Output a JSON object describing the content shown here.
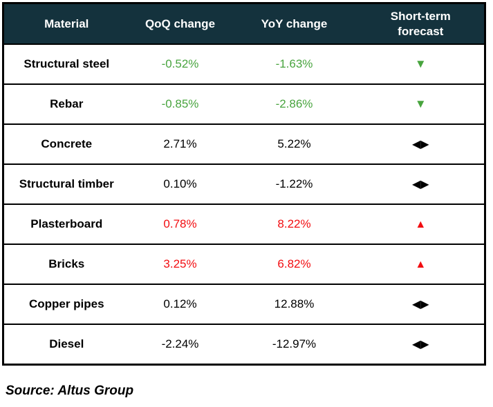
{
  "chart_data": {
    "type": "table",
    "columns": [
      "Material",
      "QoQ change",
      "YoY change",
      "Short-term forecast"
    ],
    "rows": [
      {
        "material": "Structural steel",
        "qoq": "-0.52%",
        "yoy": "-1.63%",
        "forecast": "down"
      },
      {
        "material": "Rebar",
        "qoq": "-0.85%",
        "yoy": "-2.86%",
        "forecast": "down"
      },
      {
        "material": "Concrete",
        "qoq": "2.71%",
        "yoy": "5.22%",
        "forecast": "neutral"
      },
      {
        "material": "Structural timber",
        "qoq": "0.10%",
        "yoy": "-1.22%",
        "forecast": "neutral"
      },
      {
        "material": "Plasterboard",
        "qoq": "0.78%",
        "yoy": "8.22%",
        "forecast": "up"
      },
      {
        "material": "Bricks",
        "qoq": "3.25%",
        "yoy": "6.82%",
        "forecast": "up"
      },
      {
        "material": "Copper pipes",
        "qoq": "0.12%",
        "yoy": "12.88%",
        "forecast": "neutral"
      },
      {
        "material": "Diesel",
        "qoq": "-2.24%",
        "yoy": "-12.97%",
        "forecast": "neutral"
      }
    ]
  },
  "icons": {
    "down_triangle": "▼",
    "up_triangle": "▲",
    "neutral_arrows": "◀▶"
  },
  "colors": {
    "header_background": "#14323d",
    "header_text": "#ffffff",
    "decrease_green": "#48a43e",
    "increase_red": "#f20d11",
    "neutral_black": "#000000"
  },
  "source": "Source: Altus Group"
}
